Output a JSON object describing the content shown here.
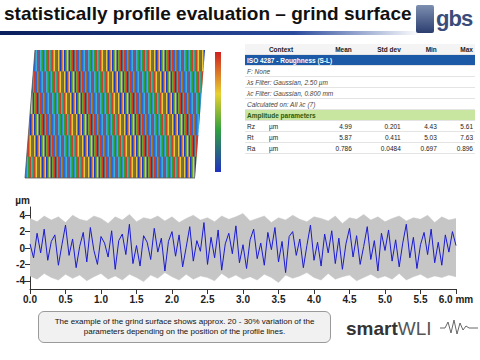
{
  "header": {
    "title": "statistically profile evaluation – grind surface",
    "logo": "gbs"
  },
  "table": {
    "header": [
      "Context",
      "Mean",
      "Std dev",
      "Min",
      "Max"
    ],
    "section": "ISO 4287 - Roughness (S-L)",
    "settings": [
      "F: None",
      "λs Filter: Gaussian, 2.50 µm",
      "λc Filter: Gaussian, 0.800 mm",
      "Calculated on: All λc (7)"
    ],
    "group": "Amplitude parameters",
    "rows": [
      [
        "Rz",
        "µm",
        "4.99",
        "0.201",
        "4.43",
        "5.61"
      ],
      [
        "Rt",
        "µm",
        "5.87",
        "0.411",
        "5.03",
        "7.63"
      ],
      [
        "Ra",
        "µm",
        "0.786",
        "0.0484",
        "0.697",
        "0.896"
      ]
    ]
  },
  "chart_data": {
    "type": "line",
    "ylabel": "µm",
    "xlim": [
      0,
      6
    ],
    "xticks": [
      {
        "value": 0,
        "label": "0.0"
      },
      {
        "value": 0.5,
        "label": "0.5"
      },
      {
        "value": 1,
        "label": "1.0"
      },
      {
        "value": 1.5,
        "label": "1.5"
      },
      {
        "value": 2,
        "label": "2.0"
      },
      {
        "value": 2.5,
        "label": "2.5"
      },
      {
        "value": 3,
        "label": "3.0"
      },
      {
        "value": 3.5,
        "label": "3.5"
      },
      {
        "value": 4,
        "label": "4.0"
      },
      {
        "value": 4.5,
        "label": "4.5"
      },
      {
        "value": 5,
        "label": "5.0"
      },
      {
        "value": 5.5,
        "label": "5.5"
      },
      {
        "value": 6,
        "label": "6.0 mm"
      }
    ],
    "ylim": [
      -5,
      5
    ],
    "yticks": [
      -4,
      -2,
      0,
      2,
      4
    ],
    "grid": false,
    "band": {
      "color": "#c6c6c6",
      "x": [
        0,
        0.1,
        0.2,
        0.3,
        0.4,
        0.5,
        0.6,
        0.7,
        0.8,
        0.9,
        1,
        1.1,
        1.2,
        1.3,
        1.4,
        1.5,
        1.6,
        1.7,
        1.8,
        1.9,
        2,
        2.1,
        2.2,
        2.3,
        2.4,
        2.5,
        2.6,
        2.7,
        2.8,
        2.9,
        3,
        3.1,
        3.2,
        3.3,
        3.4,
        3.5,
        3.6,
        3.7,
        3.8,
        3.9,
        4,
        4.1,
        4.2,
        4.3,
        4.4,
        4.5,
        4.6,
        4.7,
        4.8,
        4.9,
        5,
        5.1,
        5.2,
        5.3,
        5.4,
        5.5,
        5.6,
        5.7,
        5.8,
        5.9,
        6
      ],
      "upper": [
        3.6,
        3.2,
        3.9,
        3.4,
        3.8,
        3.1,
        4.0,
        3.5,
        3.3,
        3.9,
        3.6,
        3.0,
        3.8,
        3.4,
        4.1,
        3.2,
        3.7,
        3.5,
        3.9,
        3.3,
        3.8,
        3.1,
        3.6,
        4.0,
        3.4,
        3.7,
        3.2,
        3.9,
        3.5,
        3.8,
        4.2,
        3.3,
        3.6,
        3.9,
        3.1,
        3.7,
        3.4,
        4.0,
        3.5,
        3.2,
        3.8,
        3.6,
        3.3,
        3.9,
        3.0,
        3.7,
        3.5,
        4.1,
        3.4,
        3.8,
        3.2,
        3.6,
        3.9,
        3.3,
        3.7,
        3.5,
        4.0,
        3.1,
        3.8,
        3.4,
        3.6
      ],
      "lower": [
        -3.4,
        -3.8,
        -3.1,
        -3.6,
        -3.9,
        -3.2,
        -3.7,
        -3.3,
        -4.0,
        -3.5,
        -3.1,
        -3.8,
        -3.4,
        -3.9,
        -3.2,
        -3.6,
        -4.1,
        -3.3,
        -3.7,
        -3.0,
        -3.5,
        -3.9,
        -3.2,
        -3.8,
        -3.4,
        -3.6,
        -4.0,
        -3.1,
        -3.7,
        -3.3,
        -3.8,
        -3.5,
        -3.9,
        -3.2,
        -3.6,
        -4.2,
        -3.3,
        -3.7,
        -3.4,
        -3.0,
        -3.6,
        -3.9,
        -3.1,
        -3.8,
        -3.5,
        -3.3,
        -4.0,
        -3.6,
        -3.2,
        -3.7,
        -3.4,
        -3.8,
        -3.1,
        -3.9,
        -3.5,
        -3.2,
        -3.7,
        -3.4,
        -3.6,
        -3.3,
        -3.5
      ]
    },
    "series": [
      {
        "color": "#1a1ad2",
        "line_style": "solid",
        "x": [
          0,
          0.05,
          0.1,
          0.15,
          0.2,
          0.25,
          0.3,
          0.35,
          0.4,
          0.45,
          0.5,
          0.55,
          0.6,
          0.65,
          0.7,
          0.75,
          0.8,
          0.85,
          0.9,
          0.95,
          1,
          1.05,
          1.1,
          1.15,
          1.2,
          1.25,
          1.3,
          1.35,
          1.4,
          1.45,
          1.5,
          1.55,
          1.6,
          1.65,
          1.7,
          1.75,
          1.8,
          1.85,
          1.9,
          1.95,
          2,
          2.05,
          2.1,
          2.15,
          2.2,
          2.25,
          2.3,
          2.35,
          2.4,
          2.45,
          2.5,
          2.55,
          2.6,
          2.65,
          2.7,
          2.75,
          2.8,
          2.85,
          2.9,
          2.95,
          3,
          3.05,
          3.1,
          3.15,
          3.2,
          3.25,
          3.3,
          3.35,
          3.4,
          3.45,
          3.5,
          3.55,
          3.6,
          3.65,
          3.7,
          3.75,
          3.8,
          3.85,
          3.9,
          3.95,
          4,
          4.05,
          4.1,
          4.15,
          4.2,
          4.25,
          4.3,
          4.35,
          4.4,
          4.45,
          4.5,
          4.55,
          4.6,
          4.65,
          4.7,
          4.75,
          4.8,
          4.85,
          4.9,
          4.95,
          5,
          5.05,
          5.1,
          5.15,
          5.2,
          5.25,
          5.3,
          5.35,
          5.4,
          5.45,
          5.5,
          5.55,
          5.6,
          5.65,
          5.7,
          5.75,
          5.8,
          5.85,
          5.9,
          5.95,
          6
        ],
        "values": [
          0.5,
          -1.2,
          1.8,
          -0.6,
          2.3,
          -1.5,
          0.8,
          1.6,
          -2.1,
          0.4,
          2.8,
          -0.9,
          1.1,
          -2.4,
          0.2,
          1.9,
          -1.7,
          2.5,
          -0.3,
          -2.0,
          1.4,
          0.6,
          -1.1,
          2.1,
          -2.6,
          0.9,
          1.7,
          -0.8,
          2.9,
          -1.9,
          0.3,
          -2.2,
          1.5,
          0.7,
          -1.4,
          2.4,
          -0.5,
          1.2,
          -2.8,
          0.8,
          2.0,
          -1.0,
          1.6,
          -2.3,
          0.1,
          2.6,
          -1.6,
          0.9,
          -0.4,
          3.1,
          -2.0,
          1.3,
          -1.2,
          2.2,
          -2.7,
          0.5,
          1.8,
          -0.7,
          2.7,
          -1.8,
          0.4,
          -2.5,
          1.0,
          2.3,
          -1.3,
          0.6,
          -2.1,
          1.9,
          -0.2,
          2.5,
          -1.7,
          0.8,
          -3.0,
          1.4,
          2.0,
          -0.9,
          1.1,
          -2.4,
          0.3,
          2.8,
          -1.5,
          0.7,
          -2.2,
          1.7,
          -0.6,
          2.1,
          -1.9,
          1.2,
          -2.6,
          0.5,
          2.4,
          -1.1,
          1.5,
          -2.0,
          0.2,
          2.6,
          -1.4,
          0.9,
          -2.8,
          1.8,
          -0.3,
          2.2,
          -1.6,
          1.0,
          -2.3,
          0.6,
          2.9,
          -1.2,
          1.3,
          -2.5,
          0.4,
          1.9,
          -0.8,
          2.3,
          -1.8,
          0.7,
          -2.1,
          1.6,
          -0.5,
          2.0,
          0.3
        ]
      }
    ]
  },
  "caption": "The example of the grind surface shows approx. 20 - 30% variation of the parameters depending on the position of the profile lines.",
  "brand": [
    "smart",
    "WLI"
  ]
}
